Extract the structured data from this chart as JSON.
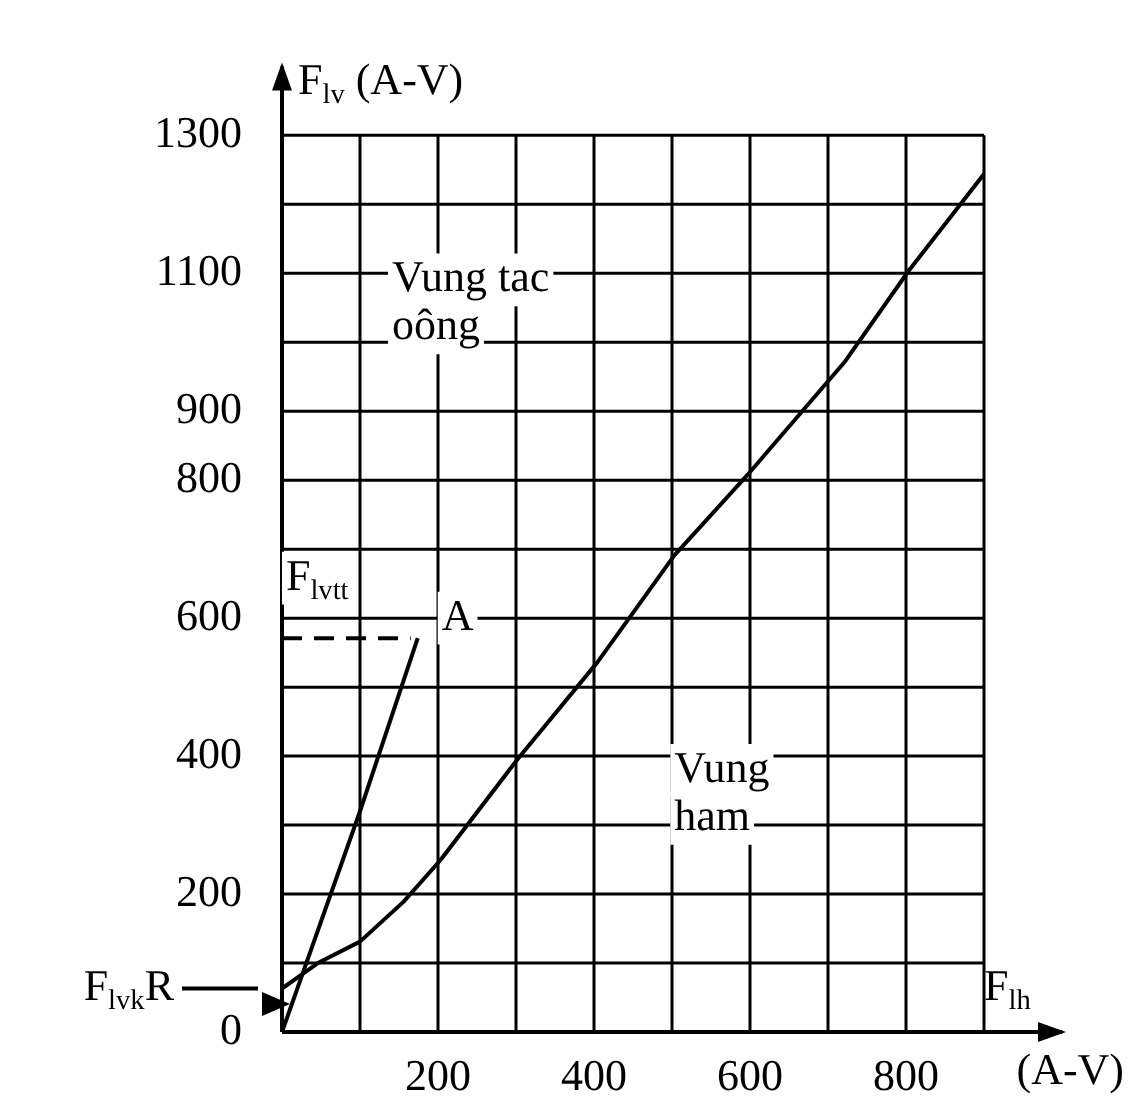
{
  "chart_data": {
    "type": "line",
    "xlabel": "F$_{lh}$",
    "ylabel": "F$_{lv}$ (A-V)",
    "xlim": [
      0,
      1000
    ],
    "ylim": [
      0,
      1400
    ],
    "xticks": [
      {
        "value": 0,
        "label": null
      },
      {
        "value": 100,
        "label": null
      },
      200,
      {
        "value": 300,
        "label": null
      },
      400,
      {
        "value": 500,
        "label": null
      },
      600,
      {
        "value": 700,
        "label": null
      },
      800,
      {
        "value": 900,
        "label": null
      }
    ],
    "yticks": [
      0,
      {
        "value": 100,
        "label": null
      },
      200,
      {
        "value": 300,
        "label": null
      },
      400,
      {
        "value": 500,
        "label": null
      },
      600,
      {
        "value": 700,
        "label": null
      },
      800,
      900,
      {
        "value": 1000,
        "label": null
      },
      1100,
      {
        "value": 1200,
        "label": null
      },
      1300
    ],
    "grid": true,
    "legend": false,
    "marker": "none",
    "series": [
      {
        "x": [
          0,
          100,
          174
        ],
        "values": [
          0,
          320,
          571
        ],
        "color": "#000000"
      },
      {
        "x": [
          0,
          165
        ],
        "values": [
          571,
          571
        ],
        "color": "#000000",
        "line_style": "dashed"
      },
      {
        "x": [
          0,
          46,
          100,
          156,
          203,
          303,
          405,
          503,
          597,
          721,
          803,
          900
        ],
        "values": [
          63,
          100,
          131,
          189,
          249,
          397,
          537,
          691,
          808,
          971,
          1103,
          1244
        ],
        "color": "#000000"
      }
    ],
    "annotations": [
      {
        "text": "F$_{lvtt}$",
        "x": 82,
        "y": 571
      },
      {
        "text": "A",
        "x": 174,
        "y": 571
      },
      "Vung tac\noông",
      "Vung\nham",
      {
        "text": "F$_{lvk}$R",
        "x": 0,
        "y": 63
      },
      "(A-V)"
    ]
  }
}
